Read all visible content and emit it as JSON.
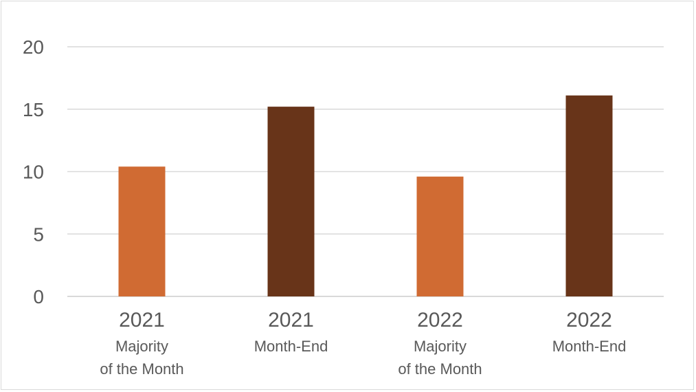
{
  "chart_data": {
    "type": "bar",
    "categories": [
      {
        "year": "2021",
        "label_lines": [
          "Majority",
          "of the Month"
        ]
      },
      {
        "year": "2021",
        "label_lines": [
          "Month-End"
        ]
      },
      {
        "year": "2022",
        "label_lines": [
          "Majority",
          "of the Month"
        ]
      },
      {
        "year": "2022",
        "label_lines": [
          "Month-End"
        ]
      }
    ],
    "values": [
      10.4,
      15.2,
      9.6,
      16.1
    ],
    "bar_colors": [
      "#d06b33",
      "#683419",
      "#d06b33",
      "#683419"
    ],
    "ylim": [
      0,
      20
    ],
    "yticks": [
      0,
      5,
      10,
      15,
      20
    ],
    "grid": true,
    "gridline_color": "#d9d9d9",
    "title": "",
    "xlabel": "",
    "ylabel": ""
  }
}
